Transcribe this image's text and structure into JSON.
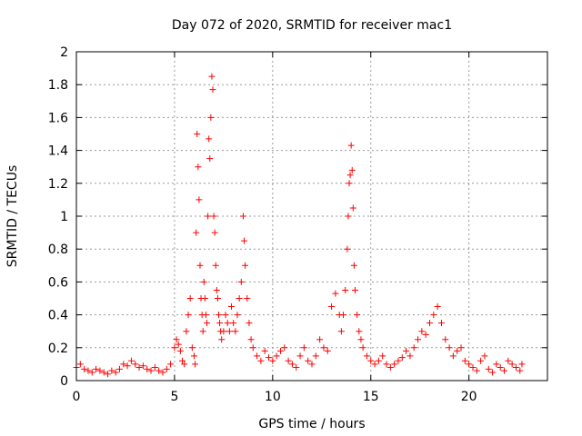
{
  "chart_data": {
    "type": "scatter",
    "title": "Day 072 of 2020, SRMTID for receiver mac1",
    "xlabel": "GPS time / hours",
    "ylabel": "SRMTID / TECUs",
    "xlim": [
      0,
      24
    ],
    "ylim": [
      0,
      2
    ],
    "xticks": [
      0,
      5,
      10,
      15,
      20
    ],
    "xtick_labels": [
      "0",
      "5",
      "10",
      "15",
      "20"
    ],
    "yticks": [
      0,
      0.2,
      0.4,
      0.6,
      0.8,
      1.0,
      1.2,
      1.4,
      1.6,
      1.8,
      2.0
    ],
    "ytick_labels": [
      "0",
      "0.2",
      "0.4",
      "0.6",
      "0.8",
      "1",
      "1.2",
      "1.4",
      "1.6",
      "1.8",
      "2"
    ],
    "grid": true,
    "marker": "+",
    "color": "#ff0000",
    "series": [
      {
        "name": "SRMTID mac1",
        "x": [
          0.0,
          0.2,
          0.4,
          0.6,
          0.8,
          1.0,
          1.2,
          1.4,
          1.6,
          1.8,
          2.0,
          2.2,
          2.4,
          2.6,
          2.8,
          3.0,
          3.2,
          3.4,
          3.6,
          3.8,
          4.0,
          4.2,
          4.4,
          4.6,
          4.8,
          5.0,
          5.1,
          5.2,
          5.3,
          5.4,
          5.5,
          5.6,
          5.7,
          5.8,
          5.9,
          6.0,
          6.05,
          6.1,
          6.15,
          6.2,
          6.25,
          6.3,
          6.35,
          6.4,
          6.45,
          6.5,
          6.55,
          6.6,
          6.65,
          6.7,
          6.75,
          6.8,
          6.85,
          6.9,
          6.95,
          7.0,
          7.05,
          7.1,
          7.15,
          7.2,
          7.25,
          7.3,
          7.35,
          7.4,
          7.5,
          7.6,
          7.7,
          7.8,
          7.9,
          8.0,
          8.1,
          8.2,
          8.3,
          8.4,
          8.5,
          8.55,
          8.6,
          8.7,
          8.8,
          8.9,
          9.0,
          9.2,
          9.4,
          9.6,
          9.8,
          10.0,
          10.2,
          10.4,
          10.6,
          10.8,
          11.0,
          11.2,
          11.4,
          11.6,
          11.8,
          12.0,
          12.2,
          12.4,
          12.6,
          12.8,
          13.0,
          13.2,
          13.4,
          13.5,
          13.6,
          13.7,
          13.8,
          13.85,
          13.9,
          13.95,
          14.0,
          14.05,
          14.1,
          14.15,
          14.2,
          14.3,
          14.4,
          14.5,
          14.6,
          14.8,
          15.0,
          15.2,
          15.4,
          15.6,
          15.8,
          16.0,
          16.2,
          16.4,
          16.6,
          16.8,
          17.0,
          17.2,
          17.4,
          17.6,
          17.8,
          18.0,
          18.2,
          18.4,
          18.6,
          18.8,
          19.0,
          19.2,
          19.4,
          19.6,
          19.8,
          20.0,
          20.2,
          20.4,
          20.6,
          20.8,
          21.0,
          21.2,
          21.4,
          21.6,
          21.8,
          22.0,
          22.2,
          22.4,
          22.6,
          22.7
        ],
        "y": [
          0.08,
          0.1,
          0.07,
          0.06,
          0.05,
          0.07,
          0.06,
          0.05,
          0.04,
          0.06,
          0.05,
          0.07,
          0.1,
          0.09,
          0.12,
          0.1,
          0.08,
          0.09,
          0.07,
          0.06,
          0.08,
          0.06,
          0.05,
          0.07,
          0.1,
          0.2,
          0.25,
          0.22,
          0.18,
          0.12,
          0.1,
          0.3,
          0.4,
          0.5,
          0.2,
          0.15,
          0.1,
          0.9,
          1.5,
          1.3,
          1.1,
          0.7,
          0.5,
          0.4,
          0.3,
          0.6,
          0.5,
          0.4,
          0.35,
          1.0,
          1.47,
          1.35,
          1.6,
          1.85,
          1.77,
          1.0,
          0.9,
          0.7,
          0.55,
          0.5,
          0.4,
          0.35,
          0.3,
          0.25,
          0.3,
          0.4,
          0.35,
          0.3,
          0.45,
          0.35,
          0.3,
          0.4,
          0.5,
          0.6,
          1.0,
          0.85,
          0.7,
          0.5,
          0.35,
          0.25,
          0.2,
          0.15,
          0.12,
          0.18,
          0.14,
          0.12,
          0.15,
          0.18,
          0.2,
          0.12,
          0.1,
          0.08,
          0.15,
          0.2,
          0.12,
          0.1,
          0.15,
          0.25,
          0.2,
          0.18,
          0.45,
          0.53,
          0.4,
          0.3,
          0.4,
          0.55,
          0.8,
          1.0,
          1.2,
          1.25,
          1.43,
          1.28,
          1.05,
          0.7,
          0.55,
          0.4,
          0.3,
          0.25,
          0.2,
          0.15,
          0.12,
          0.1,
          0.12,
          0.15,
          0.1,
          0.08,
          0.1,
          0.12,
          0.14,
          0.18,
          0.15,
          0.2,
          0.25,
          0.3,
          0.28,
          0.35,
          0.4,
          0.45,
          0.35,
          0.25,
          0.2,
          0.15,
          0.18,
          0.2,
          0.12,
          0.1,
          0.08,
          0.06,
          0.12,
          0.15,
          0.07,
          0.05,
          0.1,
          0.08,
          0.06,
          0.12,
          0.1,
          0.08,
          0.06,
          0.1
        ]
      }
    ]
  }
}
